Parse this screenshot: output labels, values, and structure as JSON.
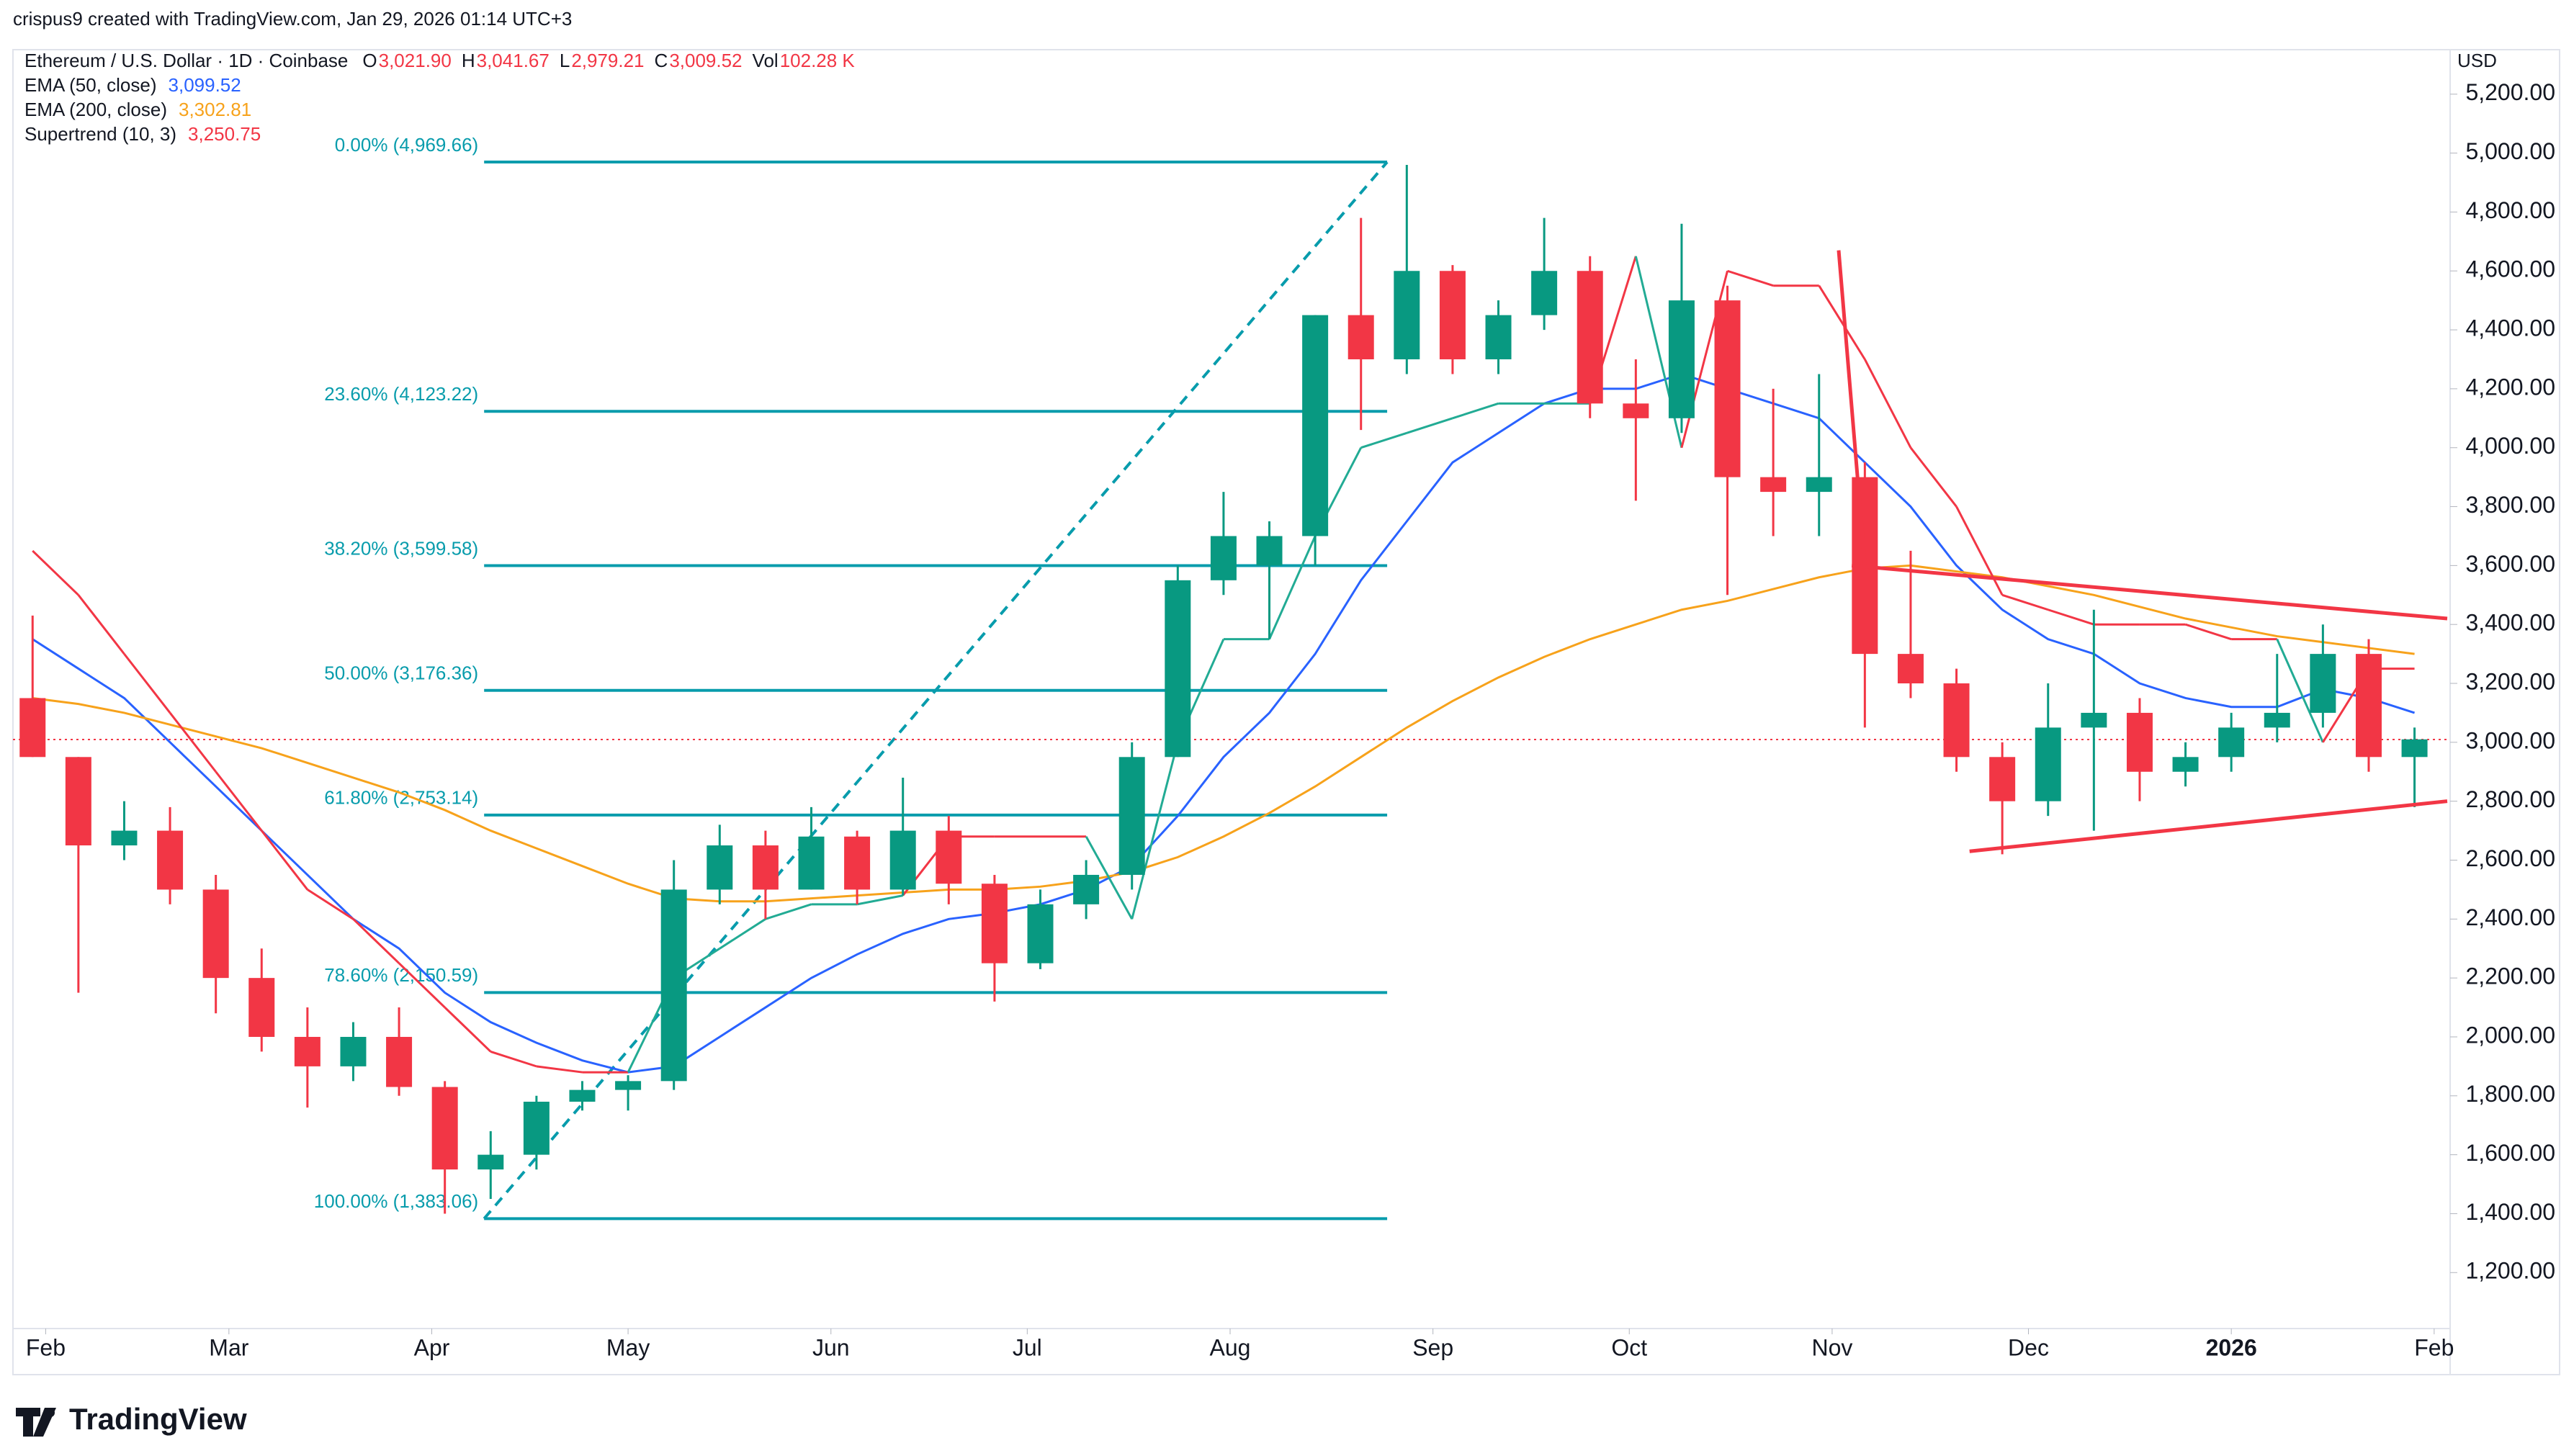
{
  "attribution": "crispus9 created with TradingView.com, Jan 29, 2026 01:14 UTC+3",
  "brand": "TradingView",
  "chart_data": {
    "type": "candlestick",
    "title": "Ethereum / U.S. Dollar · 1D · Coinbase",
    "ohlc": [
      {
        "key": "O",
        "value": "3,021.90"
      },
      {
        "key": "H",
        "value": "3,041.67"
      },
      {
        "key": "L",
        "value": "2,979.21"
      },
      {
        "key": "C",
        "value": "3,009.52"
      },
      {
        "key": "Vol",
        "value": "102.28 K"
      }
    ],
    "currency": "USD",
    "up_color": "#089981",
    "down_color": "#f23645",
    "x": [
      3,
      10,
      17,
      24,
      31,
      38,
      45,
      52,
      59,
      66,
      73,
      80,
      87,
      94,
      101,
      108,
      115,
      122,
      129,
      136,
      143,
      150,
      157,
      164,
      171,
      178,
      185,
      192,
      199,
      206,
      213,
      220,
      227,
      234,
      241,
      248,
      255,
      262,
      269,
      276,
      283,
      290,
      297,
      304,
      311,
      318,
      325,
      332,
      339,
      346,
      353,
      360,
      367
    ],
    "open": [
      3150,
      2950,
      2650,
      2700,
      2500,
      2200,
      2000,
      1900,
      2000,
      1830,
      1550,
      1600,
      1780,
      1820,
      1850,
      2500,
      2650,
      2500,
      2680,
      2500,
      2700,
      2520,
      2250,
      2450,
      2550,
      2950,
      3550,
      3600,
      3700,
      4450,
      4300,
      4600,
      4300,
      4450,
      4600,
      4150,
      4100,
      4500,
      3900,
      3850,
      3900,
      3300,
      3200,
      2950,
      2800,
      3050,
      3100,
      2900,
      2950,
      3050,
      3100,
      3300,
      2950
    ],
    "high": [
      3430,
      2950,
      2800,
      2780,
      2550,
      2300,
      2100,
      2050,
      2100,
      1850,
      1680,
      1800,
      1850,
      1870,
      2600,
      2720,
      2700,
      2780,
      2700,
      2880,
      2750,
      2550,
      2500,
      2600,
      3000,
      3600,
      3850,
      3750,
      4450,
      4780,
      4960,
      4620,
      4500,
      4780,
      4650,
      4300,
      4760,
      4550,
      4200,
      4250,
      3950,
      3650,
      3250,
      3000,
      3200,
      3450,
      3150,
      3000,
      3100,
      3300,
      3400,
      3350,
      3050
    ],
    "low": [
      2950,
      2150,
      2600,
      2450,
      2080,
      1950,
      1760,
      1850,
      1800,
      1400,
      1450,
      1550,
      1750,
      1750,
      1820,
      2450,
      2400,
      2500,
      2450,
      2480,
      2450,
      2120,
      2230,
      2400,
      2500,
      2950,
      3500,
      3350,
      3600,
      4060,
      4250,
      4250,
      4250,
      4400,
      4100,
      3820,
      4050,
      3500,
      3700,
      3700,
      3050,
      3150,
      2900,
      2620,
      2750,
      2700,
      2800,
      2850,
      2900,
      3000,
      3050,
      2900,
      2780
    ],
    "close": [
      2950,
      2650,
      2700,
      2500,
      2200,
      2000,
      1900,
      2000,
      1830,
      1550,
      1600,
      1780,
      1820,
      1850,
      2500,
      2650,
      2500,
      2680,
      2500,
      2700,
      2520,
      2250,
      2450,
      2550,
      2950,
      3550,
      3700,
      3700,
      4450,
      4300,
      4600,
      4300,
      4450,
      4600,
      4150,
      4100,
      4500,
      3900,
      3850,
      3900,
      3300,
      3200,
      2950,
      2800,
      3050,
      3100,
      2900,
      2950,
      3050,
      3100,
      3300,
      2950,
      3010
    ],
    "series": [
      {
        "name": "EMA (50, close)",
        "last": "3,099.52",
        "color": "#2962ff",
        "values": [
          3350,
          3250,
          3150,
          3000,
          2850,
          2700,
          2550,
          2400,
          2300,
          2150,
          2050,
          1980,
          1920,
          1880,
          1900,
          2000,
          2100,
          2200,
          2280,
          2350,
          2400,
          2420,
          2450,
          2500,
          2580,
          2750,
          2950,
          3100,
          3300,
          3550,
          3750,
          3950,
          4050,
          4150,
          4200,
          4200,
          4250,
          4200,
          4150,
          4100,
          3950,
          3800,
          3600,
          3450,
          3350,
          3300,
          3200,
          3150,
          3120,
          3120,
          3180,
          3150,
          3100
        ]
      },
      {
        "name": "EMA (200, close)",
        "last": "3,302.81",
        "color": "#f7a21b",
        "values": [
          3150,
          3130,
          3100,
          3060,
          3020,
          2980,
          2930,
          2880,
          2830,
          2770,
          2700,
          2640,
          2580,
          2520,
          2470,
          2460,
          2460,
          2470,
          2480,
          2490,
          2500,
          2500,
          2510,
          2530,
          2560,
          2610,
          2680,
          2760,
          2850,
          2950,
          3050,
          3140,
          3220,
          3290,
          3350,
          3400,
          3450,
          3480,
          3520,
          3560,
          3590,
          3600,
          3580,
          3560,
          3530,
          3500,
          3460,
          3420,
          3390,
          3360,
          3340,
          3320,
          3300
        ]
      },
      {
        "name": "Supertrend (10, 3)",
        "last": "3,250.75",
        "color": "#f23645",
        "alt_color": "#22ab94",
        "values": [
          3650,
          3500,
          3300,
          3100,
          2900,
          2700,
          2500,
          2400,
          2250,
          2100,
          1950,
          1900,
          1880,
          1880,
          2200,
          2300,
          2400,
          2450,
          2450,
          2480,
          2680,
          2680,
          2680,
          2680,
          2400,
          3000,
          3350,
          3350,
          3700,
          4000,
          4050,
          4100,
          4150,
          4150,
          4150,
          4650,
          4000,
          4600,
          4550,
          4550,
          4300,
          4000,
          3800,
          3500,
          3450,
          3400,
          3400,
          3400,
          3350,
          3350,
          3000,
          3250,
          3250
        ]
      }
    ],
    "fib": {
      "x": [
        72,
        210
      ],
      "color": "#089cac",
      "levels": [
        {
          "value": 4969.66,
          "label": "0.00% (4,969.66)"
        },
        {
          "value": 4123.22,
          "label": "23.60% (4,123.22)"
        },
        {
          "value": 3599.58,
          "label": "38.20% (3,599.58)"
        },
        {
          "value": 3176.36,
          "label": "50.00% (3,176.36)"
        },
        {
          "value": 2753.14,
          "label": "61.80% (2,753.14)"
        },
        {
          "value": 2150.59,
          "label": "78.60% (2,150.59)"
        },
        {
          "value": 1383.06,
          "label": "100.00% (1,383.06)"
        }
      ]
    },
    "trendlines": [
      {
        "x": [
          279,
          283
        ],
        "y": [
          4670,
          3600
        ]
      },
      {
        "x": [
          281,
          372
        ],
        "y": [
          3600,
          3420
        ]
      },
      {
        "x": [
          299,
          372
        ],
        "y": [
          2630,
          2800
        ]
      }
    ],
    "trend_color": "#f23645",
    "last_price": 3009.52,
    "xlim": [
      0,
      372
    ],
    "ylim": [
      1010,
      5351
    ],
    "xticks": [
      {
        "value": 5,
        "label": "Feb"
      },
      {
        "value": 33,
        "label": "Mar"
      },
      {
        "value": 64,
        "label": "Apr"
      },
      {
        "value": 94,
        "label": "May"
      },
      {
        "value": 125,
        "label": "Jun"
      },
      {
        "value": 155,
        "label": "Jul"
      },
      {
        "value": 186,
        "label": "Aug"
      },
      {
        "value": 217,
        "label": "Sep"
      },
      {
        "value": 247,
        "label": "Oct"
      },
      {
        "value": 278,
        "label": "Nov"
      },
      {
        "value": 308,
        "label": "Dec"
      },
      {
        "value": 339,
        "label": "2026"
      },
      {
        "value": 370,
        "label": "Feb"
      }
    ],
    "yticks": [
      {
        "value": 1200,
        "label": "1,200.00"
      },
      {
        "value": 1400,
        "label": "1,400.00"
      },
      {
        "value": 1600,
        "label": "1,600.00"
      },
      {
        "value": 1800,
        "label": "1,800.00"
      },
      {
        "value": 2000,
        "label": "2,000.00"
      },
      {
        "value": 2200,
        "label": "2,200.00"
      },
      {
        "value": 2400,
        "label": "2,400.00"
      },
      {
        "value": 2600,
        "label": "2,600.00"
      },
      {
        "value": 2800,
        "label": "2,800.00"
      },
      {
        "value": 3000,
        "label": "3,000.00"
      },
      {
        "value": 3200,
        "label": "3,200.00"
      },
      {
        "value": 3400,
        "label": "3,400.00"
      },
      {
        "value": 3600,
        "label": "3,600.00"
      },
      {
        "value": 3800,
        "label": "3,800.00"
      },
      {
        "value": 4000,
        "label": "4,000.00"
      },
      {
        "value": 4200,
        "label": "4,200.00"
      },
      {
        "value": 4400,
        "label": "4,400.00"
      },
      {
        "value": 4600,
        "label": "4,600.00"
      },
      {
        "value": 4800,
        "label": "4,800.00"
      },
      {
        "value": 5000,
        "label": "5,000.00"
      },
      {
        "value": 5200,
        "label": "5,200.00"
      }
    ]
  }
}
